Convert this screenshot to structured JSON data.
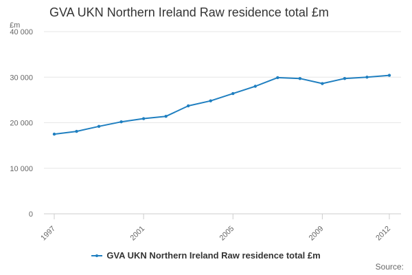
{
  "chart_data": {
    "type": "line",
    "title": "GVA UKN Northern Ireland Raw residence total £m",
    "unit_label": "£m",
    "xlabel": "",
    "ylabel": "",
    "x": [
      1997,
      1998,
      1999,
      2000,
      2001,
      2002,
      2003,
      2004,
      2005,
      2006,
      2007,
      2008,
      2009,
      2010,
      2011,
      2012
    ],
    "x_tick_labels": [
      "1997",
      "2001",
      "2005",
      "2009",
      "2012"
    ],
    "y_tick_labels": [
      "0",
      "10 000",
      "20 000",
      "30 000",
      "40 000"
    ],
    "y_ticks": [
      0,
      10000,
      20000,
      30000,
      40000
    ],
    "ylim": [
      0,
      40000
    ],
    "series": [
      {
        "name": "GVA UKN Northern Ireland Raw residence total £m",
        "color": "#1f7fc0",
        "values": [
          17500,
          18100,
          19200,
          20200,
          20900,
          21400,
          23700,
          24800,
          26400,
          28000,
          29900,
          29700,
          28600,
          29700,
          30000,
          30400
        ]
      }
    ],
    "grid": true,
    "legend_position": "bottom",
    "source_label": "Source:"
  }
}
